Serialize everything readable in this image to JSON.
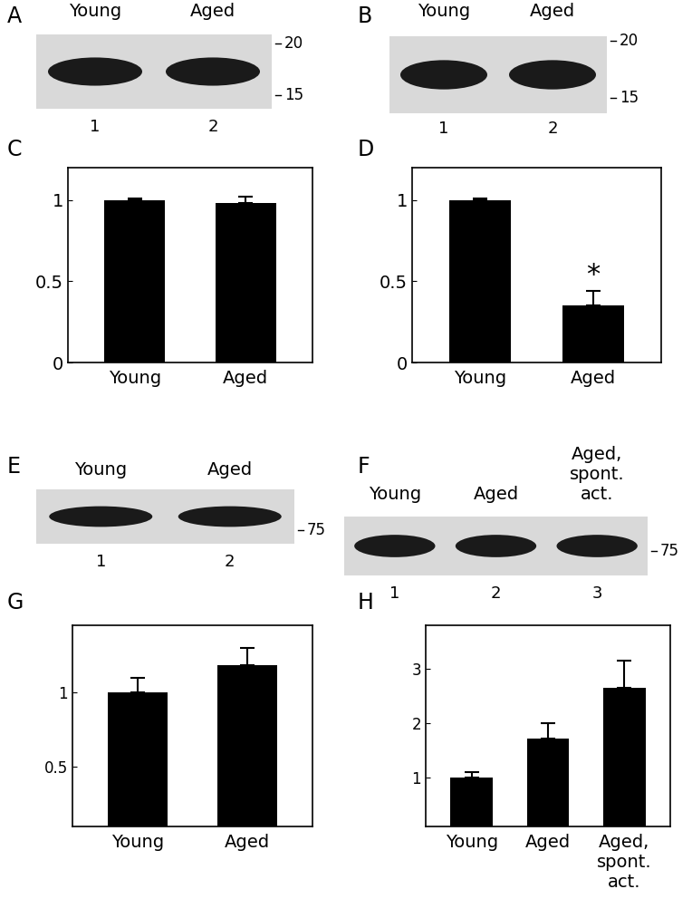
{
  "chart_data": [
    {
      "panel": "C",
      "type": "bar",
      "categories": [
        "Young",
        "Aged"
      ],
      "values": [
        1.0,
        0.98
      ],
      "errors": [
        0.01,
        0.04
      ],
      "ylim": [
        0,
        1.2
      ],
      "yticks": [
        0,
        0.5,
        1
      ],
      "color": "#000000"
    },
    {
      "panel": "D",
      "type": "bar",
      "categories": [
        "Young",
        "Aged"
      ],
      "values": [
        1.0,
        0.35
      ],
      "errors": [
        0.01,
        0.09
      ],
      "ylim": [
        0,
        1.2
      ],
      "yticks": [
        0,
        0.5,
        1
      ],
      "color": "#000000",
      "annotations": [
        {
          "category": "Aged",
          "text": "*"
        }
      ]
    },
    {
      "panel": "G",
      "type": "bar",
      "categories": [
        "Young",
        "Aged"
      ],
      "values": [
        1.0,
        1.18
      ],
      "errors": [
        0.1,
        0.12
      ],
      "ylim": [
        0.1,
        1.45
      ],
      "yticks": [
        0.5,
        1
      ],
      "color": "#000000"
    },
    {
      "panel": "H",
      "type": "bar",
      "categories": [
        "Young",
        "Aged",
        "Aged,\nspont.\nact."
      ],
      "values": [
        1.0,
        1.72,
        2.65
      ],
      "errors": [
        0.1,
        0.28,
        0.5
      ],
      "ylim": [
        0.1,
        3.8
      ],
      "yticks": [
        1,
        2,
        3
      ],
      "color": "#000000"
    }
  ],
  "blots": [
    {
      "panel": "A",
      "lanes": [
        "Young",
        "Aged"
      ],
      "lane_numbers": [
        1,
        2
      ],
      "markers": [
        20,
        15
      ]
    },
    {
      "panel": "B",
      "lanes": [
        "Young",
        "Aged"
      ],
      "lane_numbers": [
        1,
        2
      ],
      "markers": [
        20,
        15
      ]
    },
    {
      "panel": "E",
      "lanes": [
        "Young",
        "Aged"
      ],
      "lane_numbers": [
        1,
        2
      ],
      "markers": [
        75
      ]
    },
    {
      "panel": "F",
      "lanes": [
        "Young",
        "Aged",
        "Aged,\nspont.\nact."
      ],
      "lane_numbers": [
        1,
        2,
        3
      ],
      "markers": [
        75
      ]
    }
  ]
}
